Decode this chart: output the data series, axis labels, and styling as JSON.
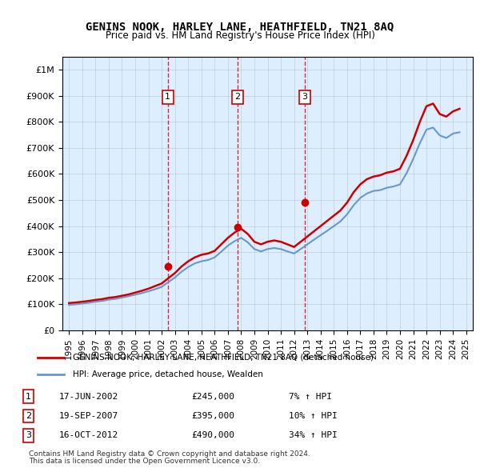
{
  "title": "GENINS NOOK, HARLEY LANE, HEATHFIELD, TN21 8AQ",
  "subtitle": "Price paid vs. HM Land Registry's House Price Index (HPI)",
  "legend_label_red": "GENINS NOOK, HARLEY LANE, HEATHFIELD, TN21 8AQ (detached house)",
  "legend_label_blue": "HPI: Average price, detached house, Wealden",
  "footer1": "Contains HM Land Registry data © Crown copyright and database right 2024.",
  "footer2": "This data is licensed under the Open Government Licence v3.0.",
  "transactions": [
    {
      "num": 1,
      "date": "17-JUN-2002",
      "price": 245000,
      "hpi_pct": "7%",
      "year": 2002.46
    },
    {
      "num": 2,
      "date": "19-SEP-2007",
      "price": 395000,
      "hpi_pct": "10%",
      "year": 2007.72
    },
    {
      "num": 3,
      "date": "16-OCT-2012",
      "price": 490000,
      "hpi_pct": "34%",
      "year": 2012.79
    }
  ],
  "red_color": "#cc0000",
  "blue_color": "#6699cc",
  "dashed_color": "#cc0000",
  "background_color": "#ddeeff",
  "ylim": [
    0,
    1050000
  ],
  "yticks": [
    0,
    100000,
    200000,
    300000,
    400000,
    500000,
    600000,
    700000,
    800000,
    900000,
    1000000
  ],
  "xlim_start": 1994.5,
  "xlim_end": 2025.5,
  "red_hpi_data": {
    "years": [
      1995,
      1995.5,
      1996,
      1996.5,
      1997,
      1997.5,
      1998,
      1998.5,
      1999,
      1999.5,
      2000,
      2000.5,
      2001,
      2001.5,
      2002,
      2002.5,
      2003,
      2003.5,
      2004,
      2004.5,
      2005,
      2005.5,
      2006,
      2006.5,
      2007,
      2007.5,
      2008,
      2008.5,
      2009,
      2009.5,
      2010,
      2010.5,
      2011,
      2011.5,
      2012,
      2012.5,
      2013,
      2013.5,
      2014,
      2014.5,
      2015,
      2015.5,
      2016,
      2016.5,
      2017,
      2017.5,
      2018,
      2018.5,
      2019,
      2019.5,
      2020,
      2020.5,
      2021,
      2021.5,
      2022,
      2022.5,
      2023,
      2023.5,
      2024,
      2024.5
    ],
    "values": [
      105000,
      107000,
      110000,
      113000,
      117000,
      120000,
      125000,
      128000,
      133000,
      138000,
      145000,
      152000,
      160000,
      170000,
      180000,
      200000,
      220000,
      245000,
      265000,
      280000,
      290000,
      295000,
      305000,
      330000,
      355000,
      375000,
      390000,
      370000,
      340000,
      330000,
      340000,
      345000,
      340000,
      330000,
      320000,
      340000,
      360000,
      380000,
      400000,
      420000,
      440000,
      460000,
      490000,
      530000,
      560000,
      580000,
      590000,
      595000,
      605000,
      610000,
      620000,
      670000,
      730000,
      800000,
      860000,
      870000,
      830000,
      820000,
      840000,
      850000
    ]
  },
  "blue_hpi_data": {
    "years": [
      1995,
      1995.5,
      1996,
      1996.5,
      1997,
      1997.5,
      1998,
      1998.5,
      1999,
      1999.5,
      2000,
      2000.5,
      2001,
      2001.5,
      2002,
      2002.5,
      2003,
      2003.5,
      2004,
      2004.5,
      2005,
      2005.5,
      2006,
      2006.5,
      2007,
      2007.5,
      2008,
      2008.5,
      2009,
      2009.5,
      2010,
      2010.5,
      2011,
      2011.5,
      2012,
      2012.5,
      2013,
      2013.5,
      2014,
      2014.5,
      2015,
      2015.5,
      2016,
      2016.5,
      2017,
      2017.5,
      2018,
      2018.5,
      2019,
      2019.5,
      2020,
      2020.5,
      2021,
      2021.5,
      2022,
      2022.5,
      2023,
      2023.5,
      2024,
      2024.5
    ],
    "values": [
      98000,
      100000,
      103000,
      106000,
      110000,
      113000,
      118000,
      121000,
      126000,
      131000,
      137000,
      143000,
      150000,
      158000,
      167000,
      185000,
      203000,
      225000,
      243000,
      257000,
      265000,
      270000,
      280000,
      302000,
      325000,
      342000,
      355000,
      338000,
      312000,
      303000,
      312000,
      316000,
      312000,
      303000,
      295000,
      312000,
      330000,
      348000,
      365000,
      382000,
      400000,
      418000,
      445000,
      480000,
      508000,
      525000,
      535000,
      538000,
      547000,
      552000,
      560000,
      603000,
      658000,
      718000,
      770000,
      778000,
      748000,
      738000,
      755000,
      760000
    ]
  }
}
